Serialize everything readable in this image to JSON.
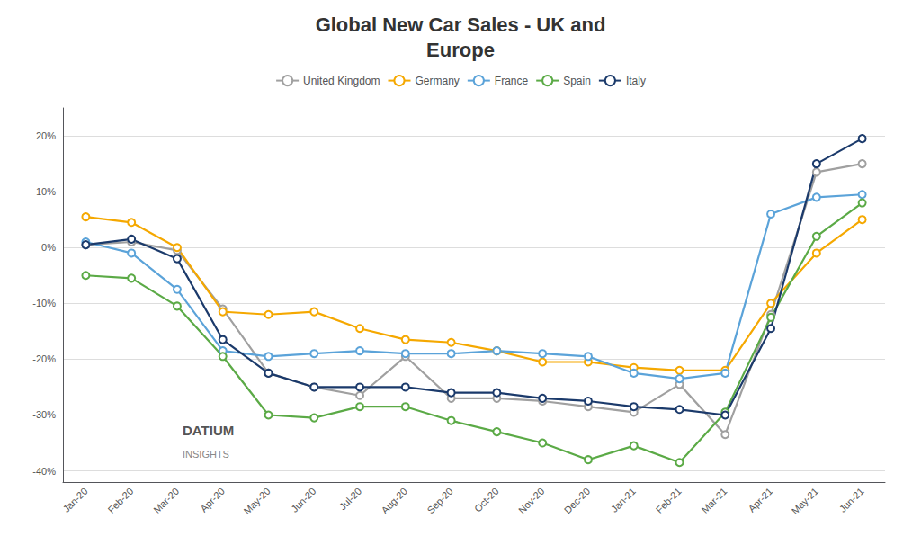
{
  "chart_data": {
    "type": "line",
    "title": "Global New Car Sales - UK and\nEurope",
    "categories": [
      "Jan-20",
      "Feb-20",
      "Mar-20",
      "Apr-20",
      "May-20",
      "Jun-20",
      "Jul-20",
      "Aug-20",
      "Sep-20",
      "Oct-20",
      "Nov-20",
      "Dec-20",
      "Jan-21",
      "Feb-21",
      "Mar-21",
      "Apr-21",
      "May-21",
      "Jun-21"
    ],
    "series": [
      {
        "name": "United Kingdom",
        "color": "#a0a0a0",
        "values": [
          0.5,
          1.0,
          -0.5,
          -11.0,
          -22.5,
          -25.0,
          -26.5,
          -19.5,
          -27.0,
          -27.0,
          -27.5,
          -28.5,
          -29.5,
          -24.5,
          -33.5,
          -12.0,
          13.5,
          15.0
        ]
      },
      {
        "name": "Germany",
        "color": "#f5a800",
        "values": [
          5.5,
          4.5,
          0.0,
          -11.5,
          -12.0,
          -11.5,
          -14.5,
          -16.5,
          -17.0,
          -18.5,
          -20.5,
          -20.5,
          -21.5,
          -22.0,
          -22.0,
          -10.0,
          -1.0,
          5.0
        ]
      },
      {
        "name": "France",
        "color": "#5ba3d9",
        "values": [
          1.0,
          -1.0,
          -7.5,
          -18.5,
          -19.5,
          -19.0,
          -18.5,
          -19.0,
          -19.0,
          -18.5,
          -19.0,
          -19.5,
          -22.5,
          -23.5,
          -22.5,
          6.0,
          9.0,
          9.5
        ]
      },
      {
        "name": "Spain",
        "color": "#5baa46",
        "values": [
          -5.0,
          -5.5,
          -10.5,
          -19.5,
          -30.0,
          -30.5,
          -28.5,
          -28.5,
          -31.0,
          -33.0,
          -35.0,
          -38.0,
          -35.5,
          -38.5,
          -29.5,
          -12.5,
          2.0,
          8.0
        ]
      },
      {
        "name": "Italy",
        "color": "#1b3a6b",
        "values": [
          0.5,
          1.5,
          -2.0,
          -16.5,
          -22.5,
          -25.0,
          -25.0,
          -25.0,
          -26.0,
          -26.0,
          -27.0,
          -27.5,
          -28.5,
          -29.0,
          -30.0,
          -14.5,
          15.0,
          19.5
        ]
      }
    ],
    "ylim": [
      -42,
      25
    ],
    "yticks": [
      {
        "value": -40,
        "label": "-40%"
      },
      {
        "value": -30,
        "label": "-30%"
      },
      {
        "value": -20,
        "label": "-20%"
      },
      {
        "value": -10,
        "label": "-10%"
      },
      {
        "value": 0,
        "label": "0%"
      },
      {
        "value": 10,
        "label": "10%"
      },
      {
        "value": 20,
        "label": "20%"
      }
    ],
    "grid": true,
    "legend": "top",
    "marker": "circle",
    "annotations": [
      "DATIUM",
      "INSIGHTS"
    ]
  }
}
